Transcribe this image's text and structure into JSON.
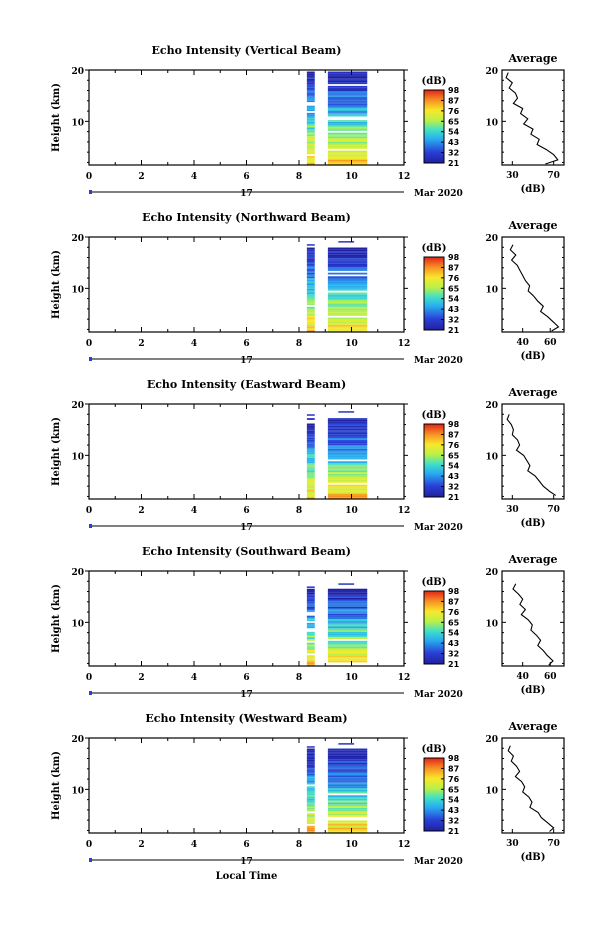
{
  "chart_data": [
    {
      "type": "heatmap",
      "title": "Echo Intensity (Vertical Beam)",
      "ylabel": "Height (km)",
      "x_ticks": [
        "0",
        "2",
        "4",
        "6",
        "8",
        "10",
        "12"
      ],
      "y_ticks": [
        "20",
        "10"
      ],
      "date_day": "17",
      "date_month": "Mar 2020",
      "xlim": [
        0,
        12
      ],
      "ylim": [
        1.5,
        20
      ],
      "data_start_hour": 8.3,
      "data_gap": [
        8.6,
        9.1
      ],
      "data_end_hour": 10.6,
      "top_echo_km": 19.5,
      "colorbar": {
        "unit": "(dB)",
        "labels": [
          "98",
          "87",
          "76",
          "65",
          "54",
          "43",
          "32",
          "21"
        ],
        "range": [
          21,
          98
        ]
      },
      "average": {
        "title": "Average",
        "xlabel": "(dB)",
        "x_ticks": [
          "30",
          "70"
        ],
        "y_ticks": [
          "20",
          "10"
        ],
        "xlim": [
          20,
          80
        ],
        "height_km": [
          19.5,
          18.5,
          17.5,
          16.5,
          15.5,
          14.5,
          13.5,
          12.5,
          11.5,
          10.5,
          9.5,
          8.5,
          7.5,
          6.5,
          5.5,
          4.5,
          3.5,
          2.5,
          1.7
        ],
        "mean_db": [
          26,
          24,
          30,
          27,
          33,
          35,
          31,
          40,
          38,
          45,
          41,
          50,
          48,
          56,
          54,
          63,
          70,
          74,
          62
        ]
      }
    },
    {
      "type": "heatmap",
      "title": "Echo Intensity (Northward Beam)",
      "ylabel": "Height (km)",
      "x_ticks": [
        "0",
        "2",
        "4",
        "6",
        "8",
        "10",
        "12"
      ],
      "y_ticks": [
        "20",
        "10"
      ],
      "date_day": "17",
      "date_month": "Mar 2020",
      "xlim": [
        0,
        12
      ],
      "ylim": [
        1.5,
        20
      ],
      "data_start_hour": 8.3,
      "data_gap": [
        8.6,
        9.1
      ],
      "data_end_hour": 10.6,
      "top_echo_km": 17.8,
      "colorbar": {
        "unit": "(dB)",
        "labels": [
          "98",
          "87",
          "76",
          "65",
          "54",
          "43",
          "32",
          "21"
        ],
        "range": [
          21,
          98
        ]
      },
      "average": {
        "title": "Average",
        "xlabel": "(dB)",
        "x_ticks": [
          "40",
          "60"
        ],
        "y_ticks": [
          "20",
          "10"
        ],
        "xlim": [
          25,
          70
        ],
        "height_km": [
          18.5,
          17.5,
          16.5,
          15.5,
          14.5,
          13.5,
          12.5,
          11.5,
          10.5,
          9.5,
          8.5,
          7.5,
          6.5,
          5.5,
          4.5,
          3.5,
          2.5,
          1.7
        ],
        "mean_db": [
          33,
          31,
          35,
          32,
          36,
          38,
          40,
          42,
          45,
          44,
          48,
          51,
          55,
          53,
          58,
          62,
          66,
          61
        ]
      }
    },
    {
      "type": "heatmap",
      "title": "Echo Intensity (Eastward Beam)",
      "ylabel": "Height (km)",
      "x_ticks": [
        "0",
        "2",
        "4",
        "6",
        "8",
        "10",
        "12"
      ],
      "y_ticks": [
        "20",
        "10"
      ],
      "date_day": "17",
      "date_month": "Mar 2020",
      "xlim": [
        0,
        12
      ],
      "ylim": [
        1.5,
        20
      ],
      "data_start_hour": 8.3,
      "data_gap": [
        8.6,
        9.1
      ],
      "data_end_hour": 10.6,
      "top_echo_km": 17.2,
      "colorbar": {
        "unit": "(dB)",
        "labels": [
          "98",
          "87",
          "76",
          "65",
          "54",
          "43",
          "32",
          "21"
        ],
        "range": [
          21,
          98
        ]
      },
      "average": {
        "title": "Average",
        "xlabel": "(dB)",
        "x_ticks": [
          "30",
          "70"
        ],
        "y_ticks": [
          "20",
          "10"
        ],
        "xlim": [
          20,
          80
        ],
        "height_km": [
          18,
          17,
          16,
          15,
          14,
          13,
          12,
          11,
          10,
          9,
          8,
          7,
          6,
          5,
          4,
          3,
          2.2
        ],
        "mean_db": [
          27,
          25,
          29,
          31,
          30,
          35,
          37,
          34,
          41,
          44,
          47,
          45,
          52,
          56,
          60,
          66,
          72
        ]
      }
    },
    {
      "type": "heatmap",
      "title": "Echo Intensity (Southward Beam)",
      "ylabel": "Height (km)",
      "x_ticks": [
        "0",
        "2",
        "4",
        "6",
        "8",
        "10",
        "12"
      ],
      "y_ticks": [
        "20",
        "10"
      ],
      "date_day": "17",
      "date_month": "Mar 2020",
      "xlim": [
        0,
        12
      ],
      "ylim": [
        1.5,
        20
      ],
      "data_start_hour": 8.3,
      "data_gap": [
        8.6,
        9.1
      ],
      "data_end_hour": 10.6,
      "top_echo_km": 16.2,
      "colorbar": {
        "unit": "(dB)",
        "labels": [
          "98",
          "87",
          "76",
          "65",
          "54",
          "43",
          "32",
          "21"
        ],
        "range": [
          21,
          98
        ]
      },
      "average": {
        "title": "Average",
        "xlabel": "(dB)",
        "x_ticks": [
          "40",
          "60"
        ],
        "y_ticks": [
          "20",
          "10"
        ],
        "xlim": [
          25,
          70
        ],
        "height_km": [
          17.5,
          16.5,
          15.5,
          14.5,
          13.5,
          12.5,
          11.5,
          10.5,
          9.5,
          8.5,
          7.5,
          6.5,
          5.5,
          4.5,
          3.5,
          2.5,
          1.7
        ],
        "mean_db": [
          35,
          33,
          37,
          40,
          38,
          42,
          39,
          44,
          47,
          46,
          50,
          53,
          51,
          55,
          58,
          62,
          59
        ]
      }
    },
    {
      "type": "heatmap",
      "title": "Echo Intensity (Westward Beam)",
      "ylabel": "Height (km)",
      "x_ticks": [
        "0",
        "2",
        "4",
        "6",
        "8",
        "10",
        "12"
      ],
      "y_ticks": [
        "20",
        "10"
      ],
      "date_day": "17",
      "date_month": "Mar 2020",
      "xlabel": "Local Time",
      "xlim": [
        0,
        12
      ],
      "ylim": [
        1.5,
        20
      ],
      "data_start_hour": 8.3,
      "data_gap": [
        8.6,
        9.1
      ],
      "data_end_hour": 10.6,
      "top_echo_km": 17.6,
      "colorbar": {
        "unit": "(dB)",
        "labels": [
          "98",
          "87",
          "76",
          "65",
          "54",
          "43",
          "32",
          "21"
        ],
        "range": [
          21,
          98
        ]
      },
      "average": {
        "title": "Average",
        "xlabel": "(dB)",
        "x_ticks": [
          "30",
          "70"
        ],
        "y_ticks": [
          "20",
          "10"
        ],
        "xlim": [
          20,
          80
        ],
        "height_km": [
          18.5,
          17.5,
          16.5,
          15.5,
          14.5,
          13.5,
          12.5,
          11.5,
          10.5,
          9.5,
          8.5,
          7.5,
          6.5,
          5.5,
          4.5,
          3.5,
          2.5,
          1.8
        ],
        "mean_db": [
          28,
          26,
          31,
          29,
          34,
          37,
          33,
          39,
          42,
          40,
          46,
          49,
          47,
          55,
          58,
          64,
          70,
          66
        ]
      }
    }
  ]
}
